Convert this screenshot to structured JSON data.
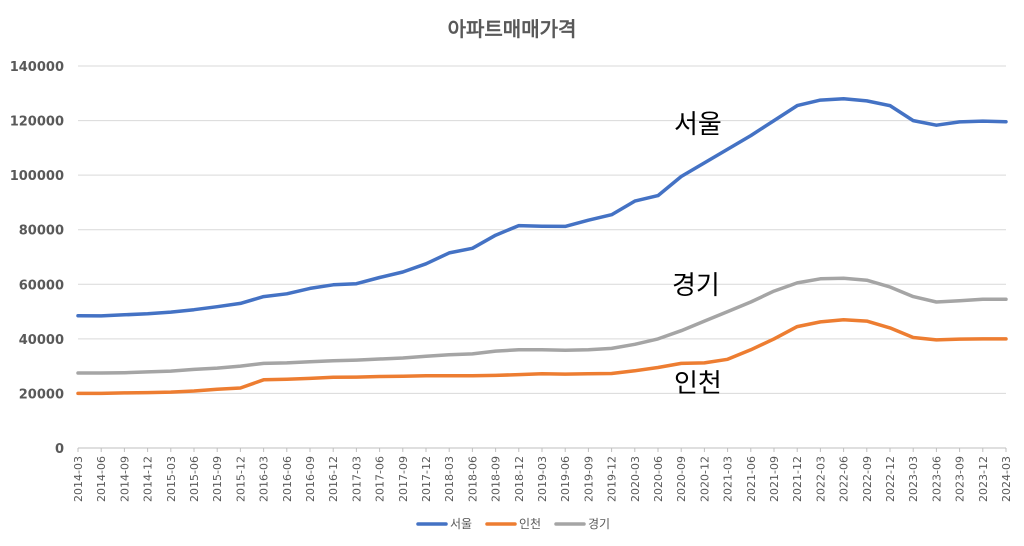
{
  "chart_data": {
    "type": "line",
    "title": "아파트매매가격",
    "ylim": [
      0,
      140000
    ],
    "yticks": [
      "0",
      "20000",
      "40000",
      "60000",
      "80000",
      "100000",
      "120000",
      "140000"
    ],
    "grid": "horizontal",
    "legend": "bottom",
    "x": [
      "2014-03",
      "2014-06",
      "2014-09",
      "2014-12",
      "2015-03",
      "2015-06",
      "2015-09",
      "2015-12",
      "2016-03",
      "2016-06",
      "2016-09",
      "2016-12",
      "2017-03",
      "2017-06",
      "2017-09",
      "2017-12",
      "2018-03",
      "2018-06",
      "2018-09",
      "2018-12",
      "2019-03",
      "2019-06",
      "2019-09",
      "2019-12",
      "2020-03",
      "2020-06",
      "2020-09",
      "2020-12",
      "2021-03",
      "2021-06",
      "2021-09",
      "2021-12",
      "2022-03",
      "2022-06",
      "2022-09",
      "2022-12",
      "2023-03",
      "2023-06",
      "2023-09",
      "2023-12",
      "2024-03"
    ],
    "series": [
      {
        "name": "서울",
        "color": "#4472C4",
        "values": [
          48500,
          48400,
          48800,
          49200,
          49800,
          50700,
          51800,
          53000,
          55500,
          56500,
          58500,
          59800,
          60200,
          62500,
          64500,
          67500,
          71500,
          73200,
          78000,
          81500,
          81300,
          81200,
          83500,
          85500,
          90500,
          92500,
          99500,
          104500,
          109500,
          114500,
          120000,
          125500,
          127500,
          128000,
          127200,
          125500,
          120000,
          118300,
          119500,
          119800,
          119600
        ]
      },
      {
        "name": "인천",
        "color": "#ED7D31",
        "values": [
          20000,
          20000,
          20200,
          20300,
          20500,
          20900,
          21500,
          22000,
          25000,
          25200,
          25500,
          25900,
          26000,
          26200,
          26300,
          26500,
          26500,
          26500,
          26600,
          26900,
          27200,
          27100,
          27200,
          27300,
          28300,
          29500,
          31000,
          31200,
          32500,
          36000,
          40000,
          44500,
          46200,
          47000,
          46500,
          44000,
          40500,
          39600,
          39900,
          40000,
          40000
        ]
      },
      {
        "name": "경기",
        "color": "#A5A5A5",
        "values": [
          27500,
          27500,
          27600,
          27900,
          28200,
          28800,
          29300,
          30000,
          31000,
          31200,
          31600,
          32000,
          32200,
          32600,
          33000,
          33600,
          34200,
          34500,
          35500,
          36000,
          36000,
          35800,
          36000,
          36500,
          38000,
          40000,
          43000,
          46500,
          50000,
          53500,
          57500,
          60500,
          62000,
          62200,
          61500,
          59000,
          55500,
          53500,
          54000,
          54500,
          54500
        ]
      }
    ],
    "annotations": [
      "서울",
      "경기",
      "인천"
    ]
  }
}
